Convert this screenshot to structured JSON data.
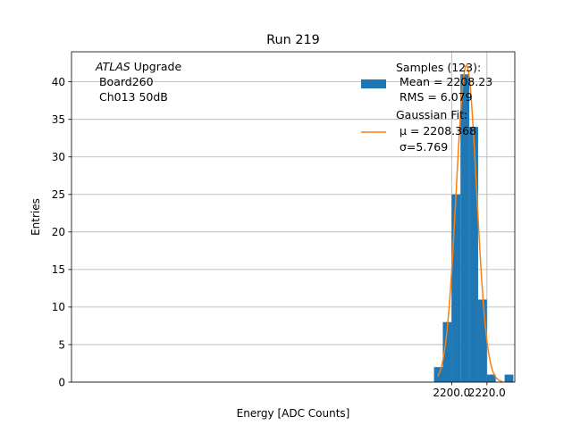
{
  "chart_data": {
    "type": "bar",
    "title": "Run 219",
    "xlabel": "Energy [ADC Counts]",
    "ylabel": "Entries",
    "xlim": [
      1984.5,
      2235.8
    ],
    "ylim": [
      0,
      44
    ],
    "grid": true,
    "x_ticks": [
      2200.0,
      2220.0
    ],
    "x_tick_labels": [
      "2200.0",
      "2220.0"
    ],
    "y_ticks": [
      0,
      5,
      10,
      15,
      20,
      25,
      30,
      35,
      40
    ],
    "y_tick_labels": [
      "0",
      "5",
      "10",
      "15",
      "20",
      "25",
      "30",
      "35",
      "40"
    ],
    "colors": {
      "histogram": "#1f77b4",
      "fit": "#ff7f0e",
      "grid": "#b0b0b0"
    },
    "histogram": {
      "name": "Samples (123):",
      "bin_width": 5,
      "bins": [
        {
          "x0": 2190,
          "x1": 2195,
          "count": 2
        },
        {
          "x0": 2195,
          "x1": 2200,
          "count": 8
        },
        {
          "x0": 2200,
          "x1": 2205,
          "count": 25
        },
        {
          "x0": 2205,
          "x1": 2210,
          "count": 41
        },
        {
          "x0": 2210,
          "x1": 2215,
          "count": 34
        },
        {
          "x0": 2215,
          "x1": 2220,
          "count": 11
        },
        {
          "x0": 2220,
          "x1": 2225,
          "count": 1
        },
        {
          "x0": 2225,
          "x1": 2230,
          "count": 0
        },
        {
          "x0": 2230,
          "x1": 2235,
          "count": 1
        }
      ]
    },
    "fit": {
      "name": "Gaussian Fit:",
      "mu": 2208.368,
      "sigma": 5.769,
      "amplitude": 42.2,
      "x_range": [
        2192,
        2229
      ]
    },
    "annotation_lines": [
      "ATLAS Upgrade",
      " Board260",
      " Ch013 50dB"
    ],
    "legend": {
      "position": "top-right",
      "samples_lines": [
        "Samples (123):",
        " Mean = 2208.23",
        " RMS = 6.079"
      ],
      "fit_lines": [
        "Gaussian Fit:",
        " μ = 2208.368",
        " σ=5.769"
      ]
    }
  }
}
